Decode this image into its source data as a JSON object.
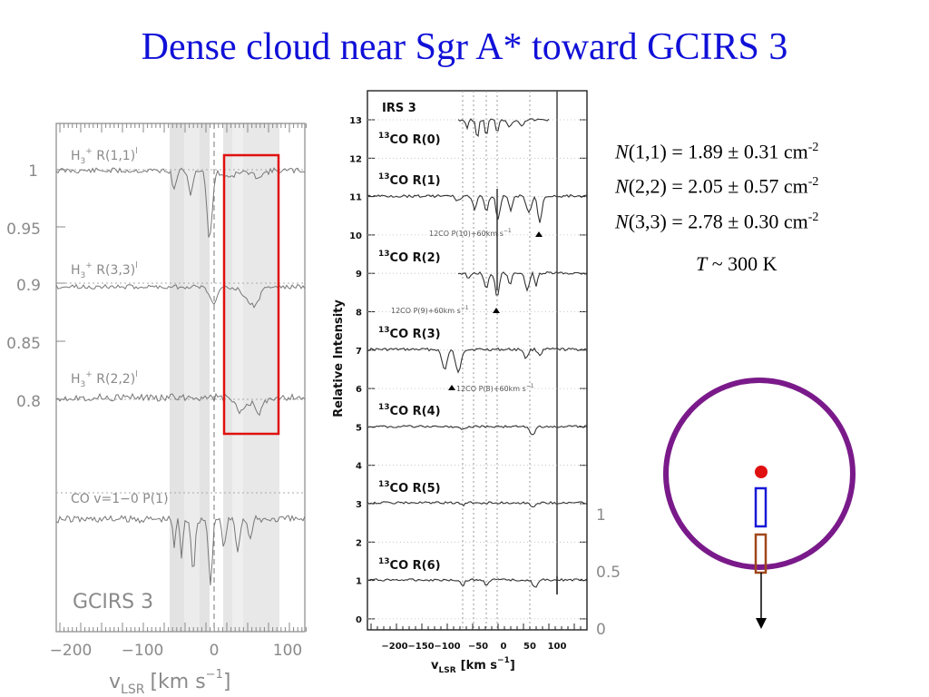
{
  "title": "Dense cloud near Sgr A* toward GCIRS 3",
  "left_panel": {
    "object_label": "GCIRS 3",
    "xlabel_main": "v",
    "xlabel_sub": "LSR",
    "xlabel_units": "[km s",
    "xlabel_exp": "−1",
    "xlabel_close": "]",
    "y_ticks": [
      "1",
      "0.95",
      "0.9",
      "0.85",
      "0.8"
    ],
    "x_ticks": [
      "−200",
      "−100",
      "0",
      "100"
    ],
    "series": [
      {
        "prefix": "H",
        "sub": "3",
        "sup": "+",
        "rest": " R(1,1)",
        "tail": "l"
      },
      {
        "prefix": "H",
        "sub": "3",
        "sup": "+",
        "rest": " R(3,3)",
        "tail": "l"
      },
      {
        "prefix": "H",
        "sub": "3",
        "sup": "+",
        "rest": " R(2,2)",
        "tail": "l"
      },
      {
        "prefix": "CO v=1−0 P(1)",
        "sub": "",
        "sup": "",
        "rest": "",
        "tail": ""
      }
    ],
    "highlight_color": "#e01010"
  },
  "mid_panel": {
    "header": "IRS 3",
    "ylabel": "Relative Intensity",
    "y_ticks": [
      "13",
      "12",
      "11",
      "10",
      "9",
      "8",
      "7",
      "6",
      "5",
      "4",
      "3",
      "2",
      "1",
      "0"
    ],
    "x_ticks": [
      "−200",
      "−150",
      "−100",
      "−50",
      "0",
      "50",
      "100"
    ],
    "xlabel_main": "v",
    "xlabel_sub": "LSR",
    "xlabel_units": "[km s",
    "xlabel_exp": "−1",
    "xlabel_close": "]",
    "lines": [
      {
        "iso": "13",
        "mol": "CO R(0)"
      },
      {
        "iso": "13",
        "mol": "CO R(1)"
      },
      {
        "iso": "13",
        "mol": "CO R(2)"
      },
      {
        "iso": "13",
        "mol": "CO R(3)"
      },
      {
        "iso": "13",
        "mol": "CO R(4)"
      },
      {
        "iso": "13",
        "mol": "CO R(5)"
      },
      {
        "iso": "13",
        "mol": "CO R(6)"
      }
    ],
    "annotations": [
      "12CO P(10)+60km s",
      "12CO P(9)+60km s",
      "12CO P(8)+60km s"
    ],
    "annotation_exp": "−1",
    "right_scale": [
      "1",
      "0.5",
      "0"
    ]
  },
  "column_densities": [
    {
      "var": "N",
      "level": "(1,1)",
      "value": " = 1.89 ± 0.31 cm",
      "exp": "-2"
    },
    {
      "var": "N",
      "level": "(2,2)",
      "value": " = 2.05 ± 0.57 cm",
      "exp": "-2"
    },
    {
      "var": "N",
      "level": "(3,3)",
      "value": " = 2.78 ± 0.30 cm",
      "exp": "-2"
    }
  ],
  "temperature": {
    "var": "T",
    "value": " ~ 300 K"
  },
  "diagram": {
    "ring_color": "#7a1a8a",
    "dot_color": "#e01010",
    "near_rect_color": "#1818d8",
    "far_rect_color": "#a0461a"
  }
}
